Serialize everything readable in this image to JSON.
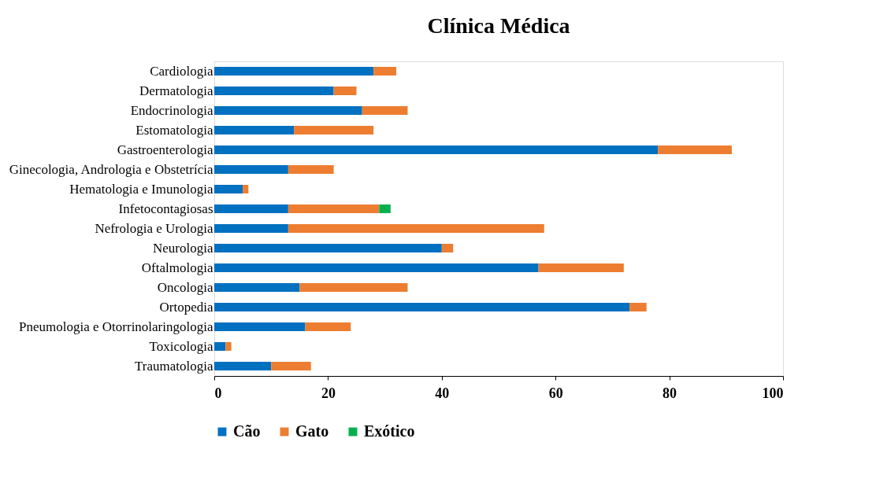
{
  "chart_data": {
    "type": "bar",
    "title": "Clínica Médica",
    "orientation": "horizontal",
    "stacked": true,
    "categories": [
      "Cardiologia",
      "Dermatologia",
      "Endocrinologia",
      "Estomatologia",
      "Gastroenterologia",
      "Ginecologia, Andrologia e Obstetrícia",
      "Hematologia e Imunologia",
      "Infetocontagiosas",
      "Nefrologia e Urologia",
      "Neurologia",
      "Oftalmologia",
      "Oncologia",
      "Ortopedia",
      "Pneumologia e Otorrinolaringologia",
      "Toxicologia",
      "Traumatologia"
    ],
    "series": [
      {
        "name": "Cão",
        "color": "#0070c0",
        "values": [
          28,
          21,
          26,
          14,
          78,
          13,
          5,
          13,
          13,
          40,
          57,
          15,
          73,
          16,
          2,
          10
        ]
      },
      {
        "name": "Gato",
        "color": "#ed7d31",
        "values": [
          4,
          4,
          8,
          14,
          13,
          8,
          1,
          16,
          45,
          2,
          15,
          19,
          3,
          8,
          1,
          7
        ]
      },
      {
        "name": "Exótico",
        "color": "#00b050",
        "values": [
          null,
          null,
          null,
          null,
          null,
          null,
          null,
          2,
          null,
          null,
          null,
          null,
          null,
          null,
          null,
          null
        ]
      }
    ],
    "xlim": [
      0,
      100
    ],
    "xticks": [
      0,
      20,
      40,
      60,
      80,
      100
    ],
    "grid": false,
    "legend": "bottom"
  }
}
